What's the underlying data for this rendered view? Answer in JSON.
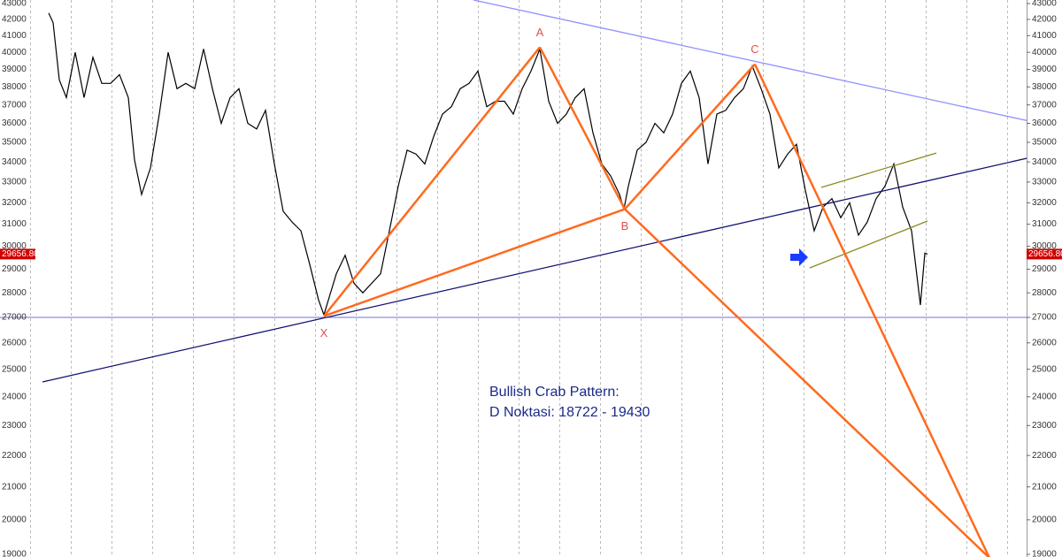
{
  "chart_data": {
    "type": "line",
    "log_scale": true,
    "xlim": [
      0,
      240
    ],
    "ylim": [
      19000,
      43000
    ],
    "yticks": [
      19000,
      20000,
      21000,
      22000,
      23000,
      24000,
      25000,
      26000,
      27000,
      28000,
      29000,
      30000,
      31000,
      32000,
      33000,
      34000,
      35000,
      36000,
      37000,
      38000,
      39000,
      40000,
      41000,
      42000,
      43000
    ],
    "series": [
      {
        "color": "#000000",
        "x": [
          11,
          12,
          13.4,
          15,
          17,
          19,
          21,
          23,
          25,
          27,
          29,
          30.4,
          32,
          34,
          36,
          38,
          40,
          42,
          44,
          46,
          48,
          50,
          52,
          54,
          56,
          58,
          60,
          62,
          64,
          66,
          68,
          70,
          72,
          73.2,
          76,
          78,
          80,
          82,
          84,
          86,
          88,
          90,
          92,
          94,
          96,
          98,
          100,
          102,
          104,
          106,
          108,
          110,
          112,
          114,
          116,
          118,
          120,
          122,
          124,
          126,
          128,
          130,
          132,
          134,
          136,
          138,
          140,
          141,
          142,
          144,
          146,
          148,
          150,
          152,
          154,
          156,
          158,
          160,
          162,
          164,
          166,
          168,
          170,
          172,
          174,
          176,
          178,
          180,
          182,
          184,
          186,
          188,
          190,
          192,
          194,
          196,
          198,
          200,
          202,
          204,
          206,
          208,
          209,
          209.6
        ],
        "values": [
          42400,
          41800,
          38400,
          37400,
          40000,
          37400,
          39700,
          38200,
          38200,
          38700,
          37400,
          34100,
          32400,
          33700,
          36500,
          40000,
          37900,
          38200,
          37900,
          40200,
          37900,
          36000,
          37400,
          37900,
          36000,
          35700,
          36700,
          33900,
          31600,
          31100,
          30700,
          29200,
          27700,
          27100,
          28800,
          29600,
          28400,
          28000,
          28400,
          28800,
          30700,
          32800,
          34600,
          34400,
          33900,
          35300,
          36500,
          36900,
          37900,
          38200,
          38900,
          36900,
          37200,
          37200,
          36500,
          37900,
          38900,
          40200,
          37200,
          36000,
          36500,
          37400,
          37900,
          35500,
          33900,
          33300,
          32400,
          31700,
          32800,
          34600,
          35000,
          36000,
          35500,
          36500,
          38200,
          38900,
          37400,
          33900,
          36500,
          36700,
          37400,
          37900,
          39200,
          37900,
          36500,
          33700,
          34400,
          34900,
          32600,
          30700,
          31800,
          32200,
          31300,
          32000,
          30500,
          31100,
          32200,
          32800,
          33900,
          31800,
          30700,
          27500,
          29700,
          29657
        ]
      }
    ],
    "last_price": {
      "value": 29656.8,
      "label": "29656.80"
    },
    "hline": {
      "value": 27000,
      "color": "#6f6fe0"
    },
    "trendlines": [
      {
        "color": "#9090ff",
        "points": [
          [
            107,
            43226
          ],
          [
            240,
            35742
          ]
        ]
      },
      {
        "color": "#101070",
        "points": [
          [
            9.6,
            24536
          ],
          [
            240,
            34590
          ]
        ]
      },
      {
        "color": "#8a8a20",
        "points": [
          [
            185.6,
            32736
          ],
          [
            211.6,
            34450
          ]
        ]
      },
      {
        "color": "#8a8a20",
        "points": [
          [
            183,
            29055
          ],
          [
            209.6,
            31146
          ]
        ]
      }
    ],
    "pattern": {
      "color": "#ff6a1f",
      "points": [
        {
          "label": "X",
          "x": 73.2,
          "value": 27050,
          "label_position": "below"
        },
        {
          "label": "A",
          "x": 122,
          "value": 40300,
          "label_position": "above"
        },
        {
          "label": "B",
          "x": 141.2,
          "value": 31700,
          "label_position": "below"
        },
        {
          "label": "C",
          "x": 170.6,
          "value": 39300,
          "label_position": "above"
        },
        {
          "x": 223.6,
          "value": 18900
        }
      ],
      "legs": [
        [
          0,
          1
        ],
        [
          1,
          2
        ],
        [
          2,
          3
        ],
        [
          3,
          4
        ],
        [
          0,
          2
        ],
        [
          2,
          4
        ]
      ]
    },
    "annotations": [
      "Bullish Crab Pattern:",
      "D Noktasi: 18722 - 19430"
    ]
  }
}
